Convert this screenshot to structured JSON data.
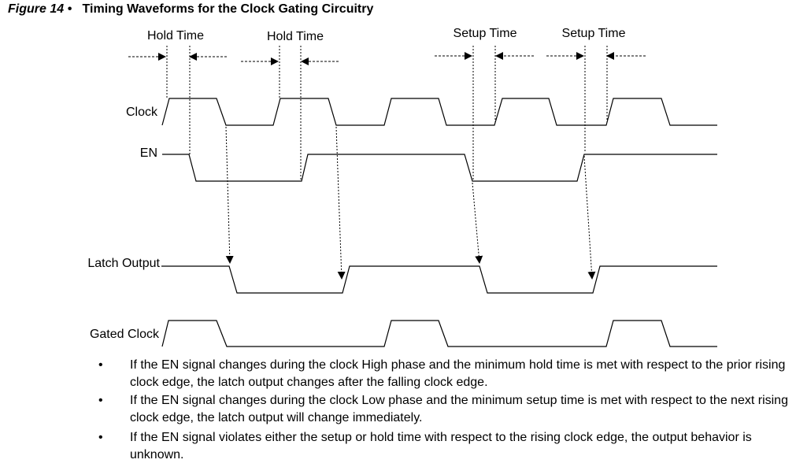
{
  "figure": {
    "number": "Figure 14 •",
    "title": "Timing Waveforms for the Clock Gating Circuitry"
  },
  "annotations": [
    {
      "label": "Hold Time"
    },
    {
      "label": "Hold Time"
    },
    {
      "label": "Setup Time"
    },
    {
      "label": "Setup Time"
    }
  ],
  "signals": {
    "clock": "Clock",
    "en": "EN",
    "latch_output": "Latch Output",
    "gated_clock": "Gated Clock"
  },
  "notes": {
    "bullet": "•",
    "items": [
      "If the EN signal changes during the clock High phase and the minimum hold time is met with respect to the prior rising clock edge, the latch output changes after the falling clock edge.",
      "If the EN signal changes during the clock Low phase and the minimum setup time is met with respect to the next rising clock edge, the latch output will change immediately.",
      "If the EN signal violates either the setup or hold time with respect to the rising clock edge, the output behavior is unknown."
    ]
  }
}
